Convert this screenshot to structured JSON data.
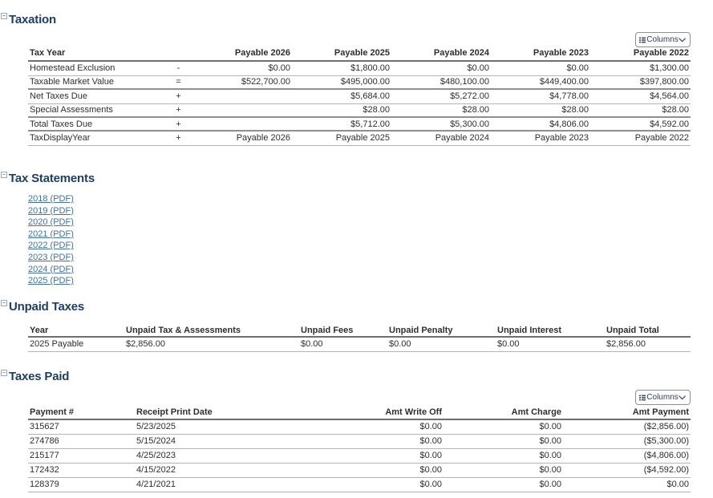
{
  "colors": {
    "section_title": "#1f3e63",
    "link": "#41719c",
    "text": "#2e2e2e"
  },
  "taxation": {
    "title": "Taxation",
    "columns_button": "Columns",
    "table": {
      "headers": [
        "Tax Year",
        "",
        "Payable 2026",
        "Payable 2025",
        "Payable 2024",
        "Payable 2023",
        "Payable 2022"
      ],
      "rows": [
        {
          "label": "Homestead Exclusion",
          "op": "-",
          "values": [
            "$0.00",
            "$1,800.00",
            "$0.00",
            "$0.00",
            "$1,300.00"
          ],
          "bold": false,
          "sep": "thin"
        },
        {
          "label": "Taxable Market Value",
          "op": "=",
          "values": [
            "$522,700.00",
            "$495,000.00",
            "$480,100.00",
            "$449,400.00",
            "$397,800.00"
          ],
          "bold": true,
          "sep": "thick"
        },
        {
          "label": "Net Taxes Due",
          "op": "+",
          "values": [
            "",
            "$5,684.00",
            "$5,272.00",
            "$4,778.00",
            "$4,564.00"
          ],
          "bold": false,
          "sep": "thin"
        },
        {
          "label": "Special Assessments",
          "op": "+",
          "values": [
            "",
            "$28.00",
            "$28.00",
            "$28.00",
            "$28.00"
          ],
          "bold": false,
          "sep": "thick"
        },
        {
          "label": "Total Taxes Due",
          "op": "+",
          "values": [
            "",
            "$5,712.00",
            "$5,300.00",
            "$4,806.00",
            "$4,592.00"
          ],
          "bold": true,
          "sep": "thick"
        },
        {
          "label": "TaxDisplayYear",
          "op": "+",
          "values": [
            "Payable 2026",
            "Payable 2025",
            "Payable 2024",
            "Payable 2023",
            "Payable 2022"
          ],
          "bold": false,
          "sep": "thin"
        }
      ]
    }
  },
  "tax_statements": {
    "title": "Tax Statements",
    "links": [
      "2018 (PDF)",
      "2019 (PDF)",
      "2020 (PDF)",
      "2021 (PDF)",
      "2022 (PDF)",
      "2023 (PDF)",
      "2024 (PDF)",
      "2025 (PDF)"
    ]
  },
  "unpaid_taxes": {
    "title": "Unpaid Taxes",
    "headers": [
      "Year",
      "Unpaid Tax & Assessments",
      "Unpaid Fees",
      "Unpaid Penalty",
      "Unpaid Interest",
      "Unpaid Total"
    ],
    "rows": [
      [
        "2025 Payable",
        "$2,856.00",
        "$0.00",
        "$0.00",
        "$0.00",
        "$2,856.00"
      ]
    ]
  },
  "taxes_paid": {
    "title": "Taxes Paid",
    "columns_button": "Columns",
    "headers": [
      "Payment #",
      "Receipt Print Date",
      "Amt Write Off",
      "Amt Charge",
      "Amt Payment"
    ],
    "rows": [
      [
        "315627",
        "5/23/2025",
        "$0.00",
        "$0.00",
        "($2,856.00)"
      ],
      [
        "274786",
        "5/15/2024",
        "$0.00",
        "$0.00",
        "($5,300.00)"
      ],
      [
        "215177",
        "4/25/2023",
        "$0.00",
        "$0.00",
        "($4,806.00)"
      ],
      [
        "172432",
        "4/15/2022",
        "$0.00",
        "$0.00",
        "($4,592.00)"
      ],
      [
        "128379",
        "4/21/2021",
        "$0.00",
        "$0.00",
        "$0.00"
      ]
    ]
  }
}
